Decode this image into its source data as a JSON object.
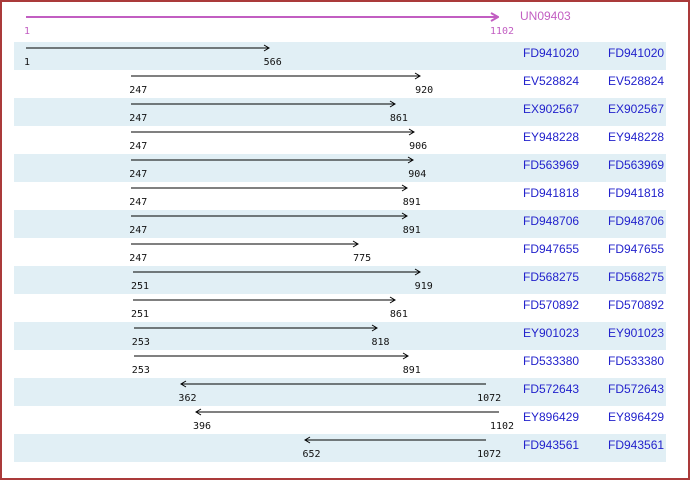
{
  "colors": {
    "border": "#aa3a3a",
    "stripe": "#e1eff5",
    "accession_text": "#2222cc",
    "reference_color": "#c25ec2",
    "arrow_color": "#000000"
  },
  "reference": {
    "name": "UN09403",
    "start": "1",
    "end": "1102"
  },
  "axis": {
    "min": 1,
    "max": 1102
  },
  "alignments": [
    {
      "name": "FD941020",
      "start": "1",
      "end": "566",
      "orientation": "forward"
    },
    {
      "name": "EV528824",
      "start": "247",
      "end": "920",
      "orientation": "forward"
    },
    {
      "name": "EX902567",
      "start": "247",
      "end": "861",
      "orientation": "forward"
    },
    {
      "name": "EY948228",
      "start": "247",
      "end": "906",
      "orientation": "forward"
    },
    {
      "name": "FD563969",
      "start": "247",
      "end": "904",
      "orientation": "forward"
    },
    {
      "name": "FD941818",
      "start": "247",
      "end": "891",
      "orientation": "forward"
    },
    {
      "name": "FD948706",
      "start": "247",
      "end": "891",
      "orientation": "forward"
    },
    {
      "name": "FD947655",
      "start": "247",
      "end": "775",
      "orientation": "forward"
    },
    {
      "name": "FD568275",
      "start": "251",
      "end": "919",
      "orientation": "forward"
    },
    {
      "name": "FD570892",
      "start": "251",
      "end": "861",
      "orientation": "forward"
    },
    {
      "name": "EY901023",
      "start": "253",
      "end": "818",
      "orientation": "forward"
    },
    {
      "name": "FD533380",
      "start": "253",
      "end": "891",
      "orientation": "forward"
    },
    {
      "name": "FD572643",
      "start": "362",
      "end": "1072",
      "orientation": "reverse"
    },
    {
      "name": "EY896429",
      "start": "396",
      "end": "1102",
      "orientation": "reverse"
    },
    {
      "name": "FD943561",
      "start": "652",
      "end": "1072",
      "orientation": "reverse"
    }
  ]
}
